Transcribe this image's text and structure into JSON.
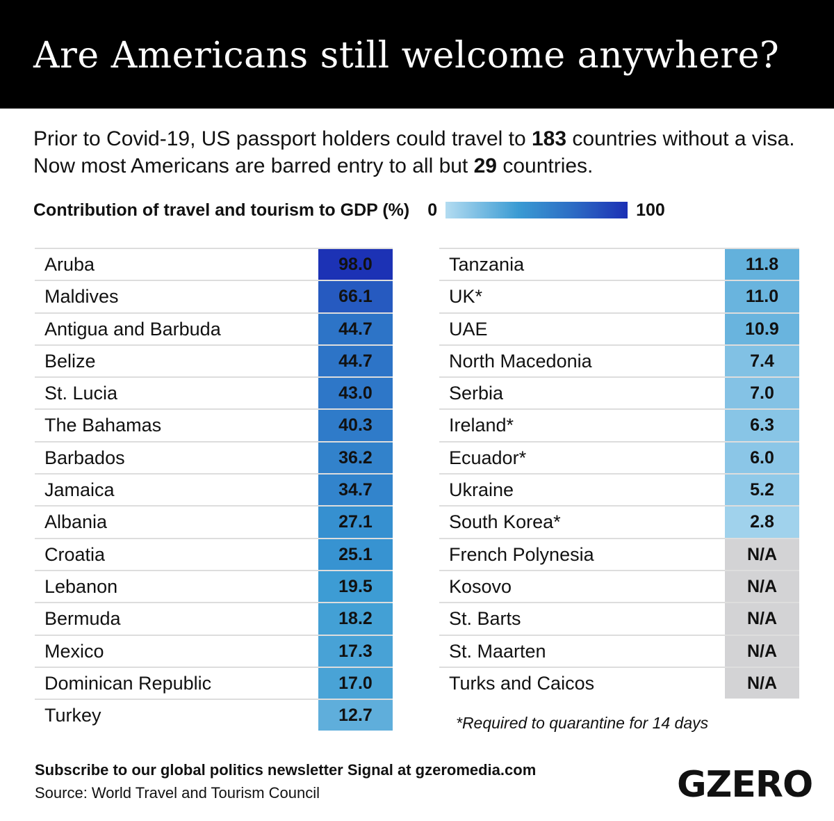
{
  "header": {
    "title": "Are Americans still welcome anywhere?"
  },
  "intro": {
    "part1": "Prior to Covid-19, US passport holders could travel to ",
    "bold1": "183",
    "part2": " countries without a visa. Now most Americans are barred entry to all but ",
    "bold2": "29",
    "part3": " countries."
  },
  "legend": {
    "label": "Contribution of travel and tourism to GDP (%)",
    "min": "0",
    "max": "100"
  },
  "colors": {
    "scale": [
      "#b3dcf1",
      "#62b0dc",
      "#3a9bd3",
      "#2d74c7",
      "#1b2fb4"
    ],
    "na": "#d3d3d5"
  },
  "chart_data": {
    "type": "table",
    "title": "Contribution of travel and tourism to GDP (%)",
    "columns": [
      [
        {
          "country": "Aruba",
          "value": "98.0"
        },
        {
          "country": "Maldives",
          "value": "66.1"
        },
        {
          "country": "Antigua and Barbuda",
          "value": "44.7"
        },
        {
          "country": "Belize",
          "value": "44.7"
        },
        {
          "country": "St. Lucia",
          "value": "43.0"
        },
        {
          "country": "The Bahamas",
          "value": "40.3"
        },
        {
          "country": "Barbados",
          "value": "36.2"
        },
        {
          "country": "Jamaica",
          "value": "34.7"
        },
        {
          "country": "Albania",
          "value": "27.1"
        },
        {
          "country": "Croatia",
          "value": "25.1"
        },
        {
          "country": "Lebanon",
          "value": "19.5"
        },
        {
          "country": "Bermuda",
          "value": "18.2"
        },
        {
          "country": "Mexico",
          "value": "17.3"
        },
        {
          "country": "Dominican Republic",
          "value": "17.0"
        },
        {
          "country": "Turkey",
          "value": "12.7"
        }
      ],
      [
        {
          "country": "Tanzania",
          "value": "11.8"
        },
        {
          "country": "UK*",
          "value": "11.0"
        },
        {
          "country": "UAE",
          "value": "10.9"
        },
        {
          "country": "North Macedonia",
          "value": "7.4"
        },
        {
          "country": "Serbia",
          "value": "7.0"
        },
        {
          "country": "Ireland*",
          "value": "6.3"
        },
        {
          "country": "Ecuador*",
          "value": "6.0"
        },
        {
          "country": "Ukraine",
          "value": "5.2"
        },
        {
          "country": "South Korea*",
          "value": "2.8"
        },
        {
          "country": "French Polynesia",
          "value": "N/A"
        },
        {
          "country": "Kosovo",
          "value": "N/A"
        },
        {
          "country": "St. Barts",
          "value": "N/A"
        },
        {
          "country": "St. Maarten",
          "value": "N/A"
        },
        {
          "country": "Turks and Caicos",
          "value": "N/A"
        }
      ]
    ]
  },
  "note": "*Required to quarantine for 14 days",
  "footer": {
    "subscribe": "Subscribe to our global politics newsletter Signal at gzeromedia.com",
    "source": "Source: World Travel and Tourism Council",
    "logo": "GZERO"
  }
}
